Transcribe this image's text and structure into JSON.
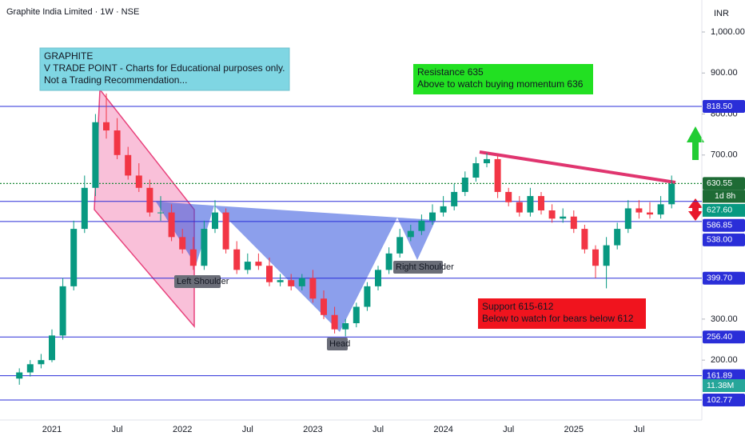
{
  "chart_data": {
    "type": "candlestick",
    "title": "Graphite India Limited · 1W · NSE",
    "currency": "INR",
    "categories": [
      null,
      null,
      null,
      "2021",
      null,
      null,
      null,
      null,
      null,
      "Jul",
      null,
      null,
      null,
      null,
      null,
      "2022",
      null,
      null,
      null,
      null,
      null,
      "Jul",
      null,
      null,
      null,
      null,
      null,
      "2023",
      null,
      null,
      null,
      null,
      null,
      "Jul",
      null,
      null,
      null,
      null,
      null,
      "2024",
      null,
      null,
      null,
      null,
      null,
      "Jul",
      null,
      null,
      null,
      null,
      null,
      "2025",
      null,
      null,
      null,
      null,
      null,
      "Jul",
      null,
      null,
      null
    ],
    "open": [
      155,
      170,
      190,
      200,
      260,
      380,
      520,
      620,
      780,
      760,
      700,
      650,
      620,
      560,
      560,
      500,
      470,
      430,
      520,
      560,
      470,
      420,
      440,
      430,
      390,
      395,
      380,
      400,
      350,
      310,
      275,
      290,
      330,
      380,
      420,
      460,
      500,
      515,
      540,
      560,
      575,
      610,
      645,
      680,
      690,
      610,
      585,
      560,
      600,
      565,
      545,
      550,
      520,
      470,
      430,
      480,
      520,
      570,
      560,
      555,
      580
    ],
    "high": [
      180,
      200,
      215,
      275,
      400,
      540,
      650,
      800,
      850,
      790,
      720,
      680,
      640,
      600,
      580,
      520,
      500,
      540,
      590,
      570,
      490,
      460,
      460,
      450,
      410,
      410,
      410,
      420,
      370,
      330,
      300,
      340,
      390,
      430,
      475,
      520,
      530,
      555,
      580,
      600,
      630,
      660,
      695,
      705,
      700,
      620,
      600,
      620,
      610,
      580,
      570,
      565,
      530,
      480,
      500,
      535,
      590,
      590,
      585,
      600,
      650
    ],
    "low": [
      140,
      160,
      180,
      195,
      250,
      370,
      510,
      600,
      740,
      690,
      640,
      610,
      550,
      540,
      490,
      460,
      420,
      420,
      510,
      460,
      410,
      410,
      420,
      380,
      380,
      370,
      370,
      340,
      300,
      265,
      258,
      280,
      320,
      370,
      410,
      450,
      490,
      505,
      530,
      550,
      565,
      600,
      635,
      670,
      595,
      575,
      550,
      550,
      555,
      535,
      535,
      510,
      460,
      400,
      375,
      470,
      510,
      545,
      545,
      545,
      570
    ],
    "close": [
      170,
      190,
      200,
      260,
      380,
      520,
      620,
      780,
      760,
      700,
      650,
      620,
      560,
      560,
      500,
      470,
      430,
      520,
      560,
      470,
      420,
      440,
      430,
      390,
      395,
      380,
      400,
      350,
      310,
      275,
      290,
      330,
      380,
      420,
      460,
      500,
      515,
      540,
      560,
      575,
      610,
      645,
      680,
      690,
      610,
      585,
      560,
      600,
      565,
      545,
      550,
      520,
      470,
      430,
      480,
      520,
      570,
      560,
      555,
      580,
      630
    ],
    "up_color": "#089981",
    "down_color": "#f23645",
    "ylim": [
      54,
      1078
    ],
    "yticks": [
      {
        "value": 1000,
        "label": "1,000.00"
      },
      {
        "value": 900,
        "label": "900.00"
      },
      {
        "value": 800,
        "label": "800.00"
      },
      {
        "value": 700,
        "label": "700.00"
      },
      {
        "value": 300,
        "label": "300.00"
      },
      {
        "value": 200,
        "label": "200.00"
      }
    ],
    "levels": [
      {
        "value": 818.5,
        "label": "818.50",
        "color": "#2a2ed8"
      },
      {
        "value": 630.55,
        "label": "630.55",
        "color": "#1e6b35"
      },
      {
        "value": 586.85,
        "label": "586.85",
        "color": "#2a2ed8"
      },
      {
        "value": 538,
        "label": "538.00",
        "color": "#2a2ed8"
      },
      {
        "value": 399.7,
        "label": "399.70",
        "color": "#2a2ed8"
      },
      {
        "value": 256.4,
        "label": "256.40",
        "color": "#2a2ed8"
      },
      {
        "value": 161.89,
        "label": "161.89",
        "color": "#2a2ed8"
      },
      {
        "value": 102.77,
        "label": "102.77",
        "color": "#2a2ed8"
      }
    ],
    "price_label": {
      "value": 627.6,
      "label": "627.60",
      "color": "#089981"
    },
    "countdown": "1d 8h",
    "volume_label": "11.38M",
    "annotations": [
      {
        "lines": [
          "GRAPHITE",
          "V TRADE POINT - Charts for Educational purposes only.",
          "Not a Trading Recommendation..."
        ],
        "color": "#7fd6e3"
      },
      {
        "lines": [
          "Resistance  635",
          "Above to watch buying momentum 636"
        ],
        "color": "#22e022"
      },
      {
        "lines": [
          "Support 615-612",
          "Below to watch for bears below 612"
        ],
        "color": "#f0141e"
      }
    ],
    "pattern_labels": [
      "Left Shoulder",
      "Head",
      "Right Shoulder"
    ]
  }
}
